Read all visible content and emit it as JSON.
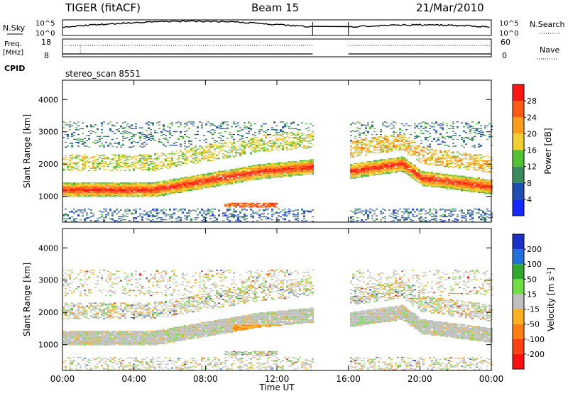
{
  "header": {
    "title": "TIGER (fitACF)",
    "beam": "Beam 15",
    "date": "21/Mar/2010"
  },
  "top_panels": {
    "nsky_label": "N.Sky",
    "nsky_ticks": [
      "10^5",
      "10^0"
    ],
    "nsearch_label": "N.Search",
    "freq_label_1": "Freq.",
    "freq_label_2": "[MHz]",
    "freq_ticks": [
      "18",
      "8"
    ],
    "nave_label": "Nave",
    "nave_ticks": [
      "60",
      "0"
    ],
    "cpid_label": "CPID",
    "cpid_value": "stereo_scan 8551"
  },
  "chart_data": [
    {
      "type": "heatmap",
      "name": "power",
      "ylabel": "Slant Range [km]",
      "ylim": [
        200,
        4600
      ],
      "yticks": [
        1000,
        2000,
        3000,
        4000
      ],
      "xlim": [
        0,
        24
      ],
      "data_gap_hours": [
        14,
        16
      ],
      "colorbar": {
        "label": "Power [dB]",
        "ticks": [
          "4",
          "8",
          "12",
          "16",
          "20",
          "24",
          "28"
        ],
        "colors": [
          "#1428ff",
          "#1f4fb0",
          "#3a8a5a",
          "#52c232",
          "#f0d030",
          "#ff9d1e",
          "#ff5a14",
          "#ff1414"
        ]
      }
    },
    {
      "type": "heatmap",
      "name": "velocity",
      "ylabel": "Slant Range [km]",
      "ylim": [
        200,
        4600
      ],
      "yticks": [
        1000,
        2000,
        3000,
        4000
      ],
      "xlim": [
        0,
        24
      ],
      "data_gap_hours": [
        14,
        16
      ],
      "colorbar": {
        "label": "Velocity [m s^-1]",
        "ticks": [
          "200",
          "100",
          "50",
          "15",
          "-15",
          "-50",
          "-100",
          "-200"
        ],
        "colors": [
          "#1a2fc8",
          "#2370d8",
          "#30a830",
          "#70dd40",
          "#c0c0c0",
          "#ffb020",
          "#ff8010",
          "#ff4010",
          "#ff1010"
        ]
      }
    }
  ],
  "x_axis": {
    "label": "Time UT",
    "ticks": [
      "00:00",
      "04:00",
      "08:00",
      "12:00",
      "16:00",
      "20:00",
      "00:00"
    ]
  }
}
